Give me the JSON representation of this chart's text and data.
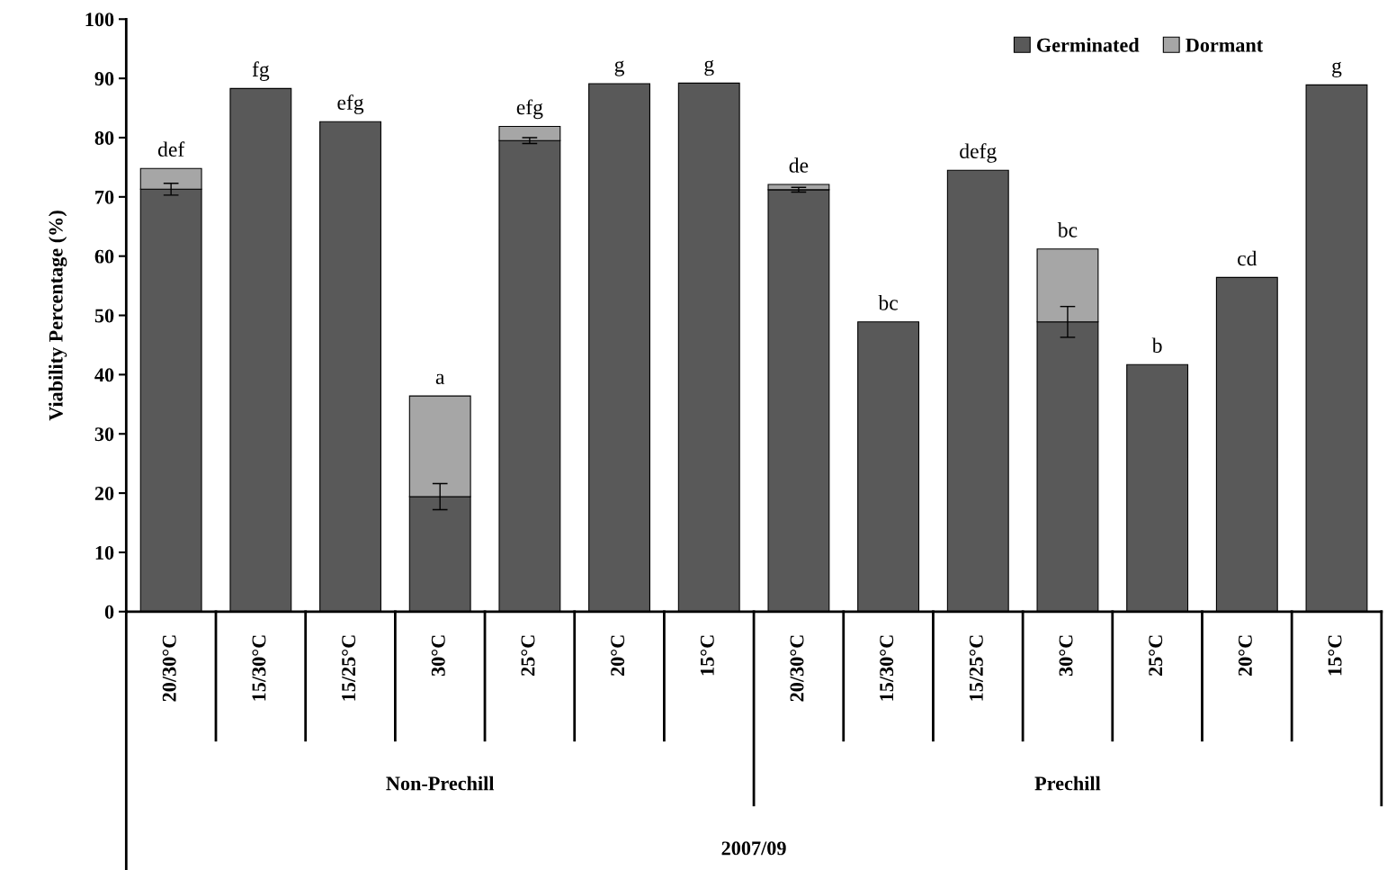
{
  "chart_data": {
    "type": "bar",
    "stacked": true,
    "ylabel": "Viability Percentage (%)",
    "categories": [
      "20/30°C",
      "15/30°C",
      "15/25°C",
      "30°C",
      "25°C",
      "20°C",
      "15°C",
      "20/30°C",
      "15/30°C",
      "15/25°C",
      "30°C",
      "25°C",
      "20°C",
      "15°C"
    ],
    "series": [
      {
        "name": "Germinated",
        "color": "#595959",
        "values": [
          71.3,
          88.3,
          82.7,
          19.4,
          79.5,
          89.1,
          89.2,
          71.2,
          48.9,
          74.5,
          48.9,
          41.7,
          56.4,
          88.9
        ],
        "errors": [
          1.0,
          null,
          null,
          2.2,
          0.5,
          null,
          null,
          0.4,
          null,
          null,
          2.6,
          null,
          null,
          null
        ]
      },
      {
        "name": "Dormant",
        "color": "#a6a6a6",
        "values": [
          3.5,
          null,
          null,
          17.0,
          2.4,
          null,
          null,
          0.9,
          null,
          null,
          12.3,
          null,
          null,
          null
        ]
      }
    ],
    "totals": [
      "def",
      "fg",
      "efg",
      "a",
      "efg",
      "g",
      "g",
      "de",
      "bc",
      "defg",
      "bc",
      "b",
      "cd",
      "g"
    ],
    "ylim": [
      0,
      100
    ],
    "yticks": [
      0,
      10,
      20,
      30,
      40,
      50,
      60,
      70,
      80,
      90,
      100
    ],
    "grid": false,
    "legend": "top right",
    "annotations": [
      "Non-Prechill",
      "Prechill",
      "2007/09"
    ]
  }
}
